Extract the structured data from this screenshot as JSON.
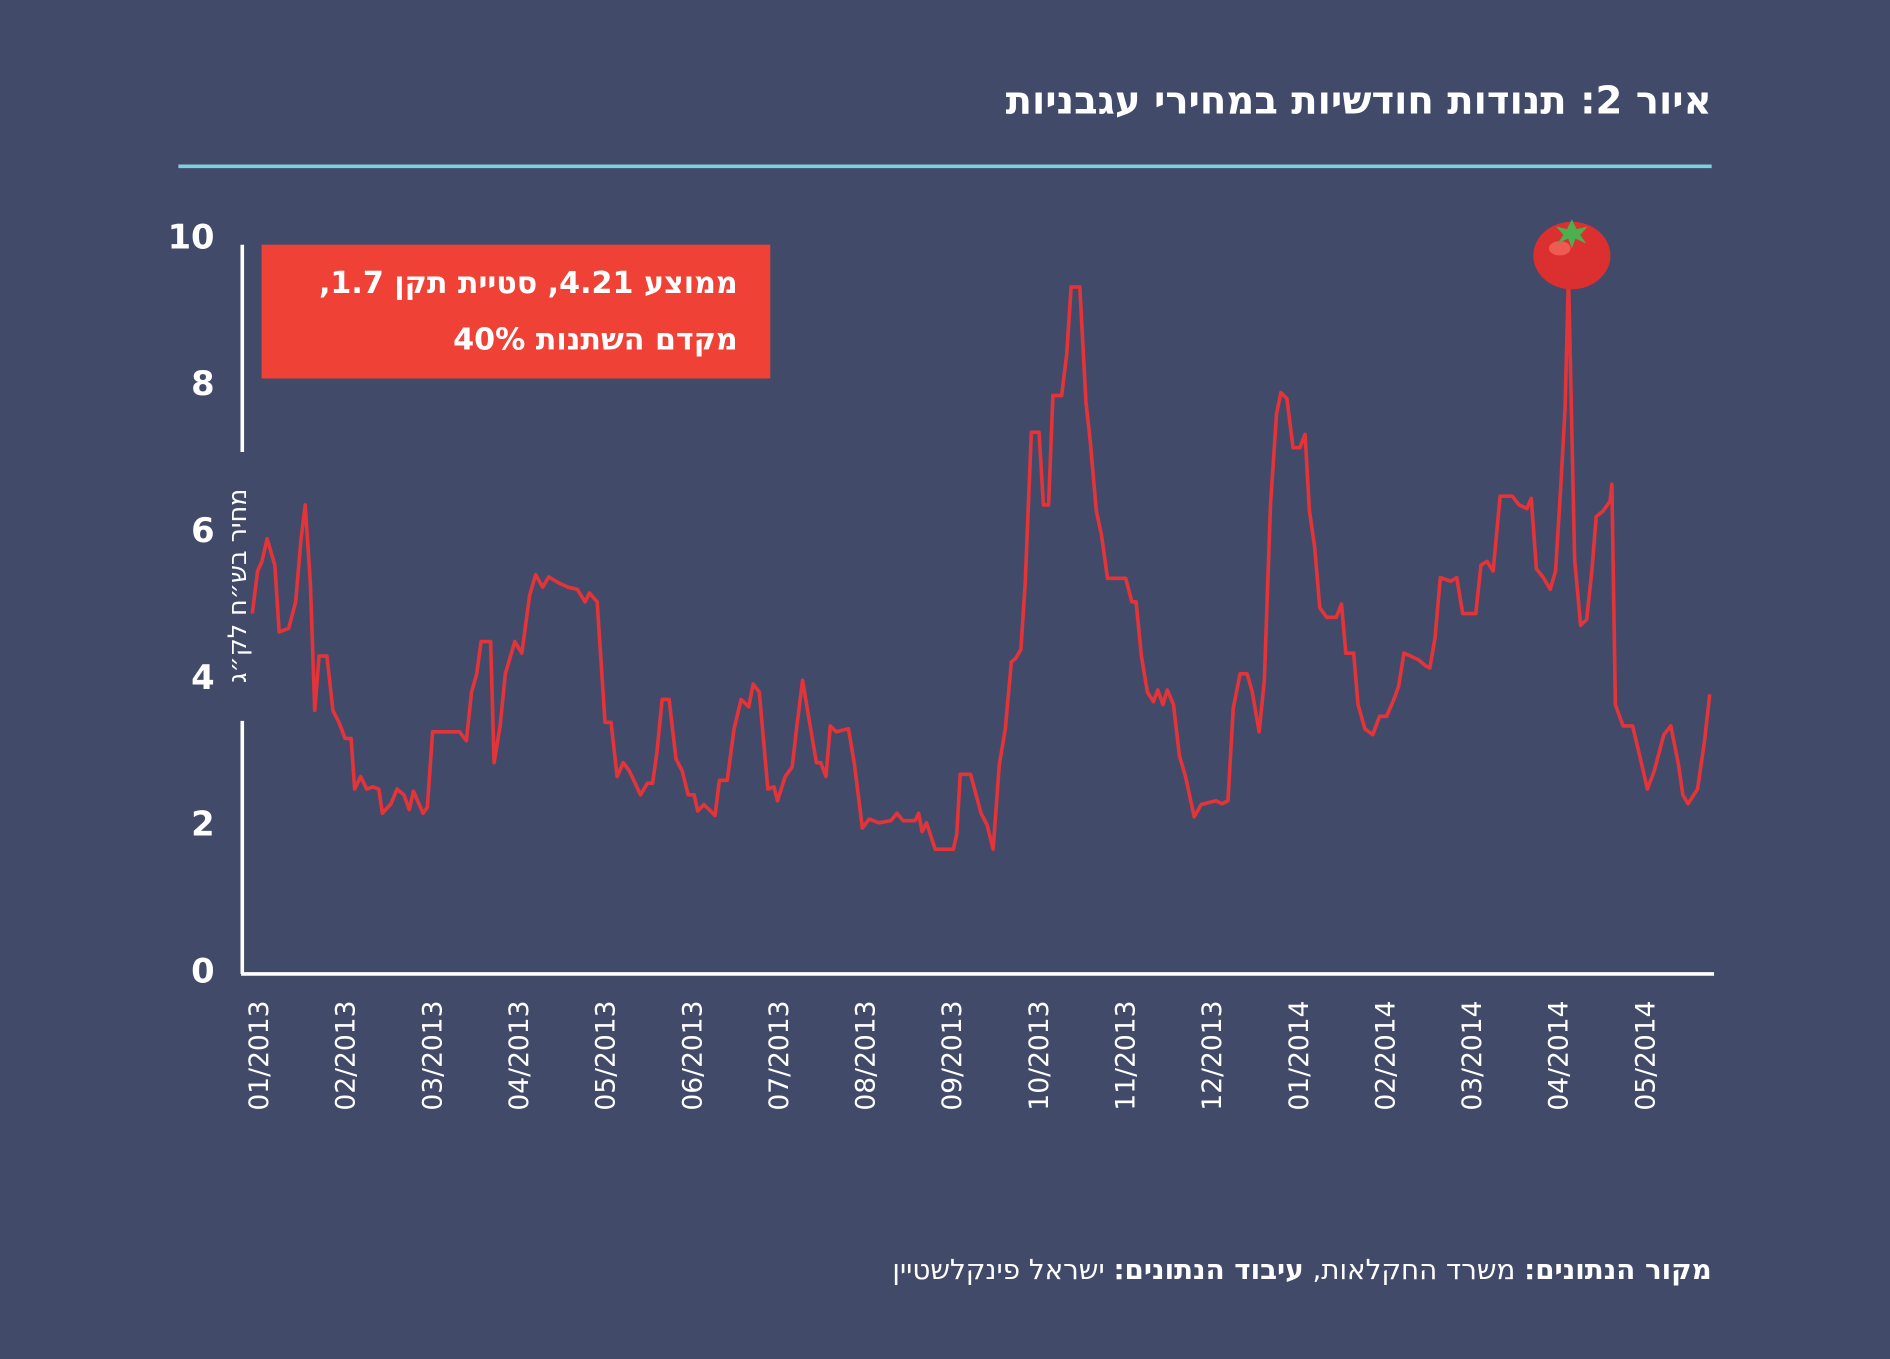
{
  "title": "איור 2: תנודות חודשיות במחירי עגבניות",
  "chart_data": {
    "type": "line",
    "y_label": "מחיר בש״ח לק״ג",
    "annotation": [
      "ממוצע 4.21, סטיית תקן 1.7,",
      "מקדם השתנות 40%"
    ],
    "xlim": [
      -0.2,
      16.8
    ],
    "xticks": [
      {
        "value": 0,
        "label": "01/2013"
      },
      {
        "value": 1,
        "label": "02/2013"
      },
      {
        "value": 2,
        "label": "03/2013"
      },
      {
        "value": 3,
        "label": "04/2013"
      },
      {
        "value": 4,
        "label": "05/2013"
      },
      {
        "value": 5,
        "label": "06/2013"
      },
      {
        "value": 6,
        "label": "07/2013"
      },
      {
        "value": 7,
        "label": "08/2013"
      },
      {
        "value": 8,
        "label": "09/2013"
      },
      {
        "value": 9,
        "label": "10/2013"
      },
      {
        "value": 10,
        "label": "11/2013"
      },
      {
        "value": 11,
        "label": "12/2013"
      },
      {
        "value": 12,
        "label": "01/2014"
      },
      {
        "value": 13,
        "label": "02/2014"
      },
      {
        "value": 14,
        "label": "03/2014"
      },
      {
        "value": 15,
        "label": "04/2014"
      },
      {
        "value": 16,
        "label": "05/2014"
      }
    ],
    "ylim": [
      0,
      10
    ],
    "yticks": [
      0,
      2,
      4,
      6,
      8,
      10
    ],
    "x": [
      -0.07,
      -0.01,
      0.04,
      0.1,
      0.19,
      0.24,
      0.35,
      0.43,
      0.49,
      0.54,
      0.6,
      0.65,
      0.7,
      0.79,
      0.86,
      0.93,
      1.0,
      1.07,
      1.11,
      1.18,
      1.25,
      1.32,
      1.39,
      1.43,
      1.53,
      1.6,
      1.68,
      1.74,
      1.79,
      1.9,
      1.95,
      2.01,
      2.32,
      2.4,
      2.46,
      2.52,
      2.57,
      2.68,
      2.72,
      2.79,
      2.85,
      2.96,
      3.04,
      3.13,
      3.2,
      3.28,
      3.35,
      3.48,
      3.57,
      3.68,
      3.77,
      3.82,
      3.91,
      4.0,
      4.07,
      4.14,
      4.21,
      4.28,
      4.41,
      4.49,
      4.55,
      4.6,
      4.66,
      4.74,
      4.82,
      4.89,
      4.96,
      5.03,
      5.07,
      5.14,
      5.27,
      5.32,
      5.41,
      5.49,
      5.57,
      5.66,
      5.71,
      5.78,
      5.88,
      5.95,
      5.99,
      6.08,
      6.16,
      6.21,
      6.28,
      6.35,
      6.44,
      6.49,
      6.55,
      6.6,
      6.67,
      6.81,
      6.88,
      6.97,
      7.05,
      7.16,
      7.3,
      7.37,
      7.44,
      7.58,
      7.62,
      7.66,
      7.71,
      7.81,
      8.02,
      8.06,
      8.1,
      8.22,
      8.34,
      8.41,
      8.48,
      8.55,
      8.62,
      8.69,
      8.74,
      8.8,
      8.85,
      8.92,
      9.01,
      9.06,
      9.12,
      9.17,
      9.27,
      9.33,
      9.38,
      9.48,
      9.55,
      9.6,
      9.67,
      9.73,
      9.8,
      10.01,
      10.08,
      10.13,
      10.19,
      10.26,
      10.33,
      10.38,
      10.44,
      10.49,
      10.56,
      10.63,
      10.7,
      10.8,
      10.88,
      11.05,
      11.12,
      11.19,
      11.25,
      11.33,
      11.41,
      11.47,
      11.55,
      11.61,
      11.68,
      11.75,
      11.8,
      11.87,
      11.94,
      12.02,
      12.08,
      12.13,
      12.19,
      12.25,
      12.33,
      12.44,
      12.5,
      12.55,
      12.64,
      12.69,
      12.77,
      12.86,
      12.94,
      13.02,
      13.11,
      13.16,
      13.22,
      13.3,
      13.39,
      13.47,
      13.52,
      13.58,
      13.64,
      13.76,
      13.83,
      13.9,
      14.05,
      14.11,
      14.18,
      14.25,
      14.33,
      14.47,
      14.55,
      14.64,
      14.69,
      14.75,
      14.83,
      14.91,
      14.97,
      15.03,
      15.08,
      15.12,
      15.19,
      15.26,
      15.33,
      15.39,
      15.44,
      15.52,
      15.6,
      15.62,
      15.66,
      15.75,
      15.86,
      15.94,
      16.03,
      16.11,
      16.22,
      16.3,
      16.39,
      16.44,
      16.5,
      16.61,
      16.69,
      16.75
    ],
    "series": [
      {
        "color": "#e3343a",
        "values": [
          4.86,
          5.44,
          5.57,
          5.88,
          5.52,
          4.61,
          4.66,
          5.02,
          5.85,
          6.34,
          5.27,
          3.54,
          4.28,
          4.28,
          3.54,
          3.38,
          3.16,
          3.16,
          2.47,
          2.64,
          2.47,
          2.5,
          2.47,
          2.14,
          2.27,
          2.47,
          2.39,
          2.19,
          2.44,
          2.14,
          2.22,
          3.25,
          3.25,
          3.13,
          3.79,
          4.04,
          4.48,
          4.48,
          2.83,
          3.33,
          4.04,
          4.48,
          4.32,
          5.11,
          5.39,
          5.22,
          5.36,
          5.27,
          5.22,
          5.19,
          5.02,
          5.14,
          5.02,
          3.38,
          3.38,
          2.64,
          2.83,
          2.72,
          2.39,
          2.55,
          2.55,
          2.97,
          3.69,
          3.69,
          2.88,
          2.72,
          2.39,
          2.39,
          2.17,
          2.26,
          2.11,
          2.59,
          2.59,
          3.29,
          3.69,
          3.59,
          3.9,
          3.79,
          2.47,
          2.5,
          2.31,
          2.64,
          2.77,
          3.29,
          3.95,
          3.46,
          2.83,
          2.83,
          2.64,
          3.33,
          3.25,
          3.29,
          2.8,
          1.94,
          2.06,
          2.01,
          2.04,
          2.14,
          2.04,
          2.04,
          2.14,
          1.89,
          2.01,
          1.65,
          1.65,
          1.85,
          2.67,
          2.67,
          2.14,
          1.98,
          1.65,
          2.8,
          3.29,
          4.2,
          4.25,
          4.37,
          5.27,
          7.33,
          7.33,
          6.34,
          6.34,
          7.83,
          7.83,
          8.4,
          9.31,
          9.31,
          7.74,
          7.22,
          6.26,
          5.93,
          5.34,
          5.34,
          5.02,
          5.02,
          4.28,
          3.79,
          3.66,
          3.82,
          3.62,
          3.82,
          3.62,
          2.92,
          2.64,
          2.09,
          2.26,
          2.31,
          2.27,
          2.31,
          3.57,
          4.04,
          4.04,
          3.79,
          3.25,
          3.95,
          6.34,
          7.58,
          7.87,
          7.79,
          7.12,
          7.12,
          7.3,
          6.26,
          5.77,
          4.94,
          4.81,
          4.81,
          4.99,
          4.32,
          4.32,
          3.62,
          3.29,
          3.21,
          3.46,
          3.46,
          3.71,
          3.87,
          4.32,
          4.28,
          4.23,
          4.15,
          4.12,
          4.53,
          5.35,
          5.3,
          5.35,
          4.86,
          4.86,
          5.52,
          5.57,
          5.44,
          6.46,
          6.46,
          6.34,
          6.29,
          6.43,
          5.47,
          5.35,
          5.19,
          5.44,
          6.59,
          7.66,
          9.47,
          5.6,
          4.7,
          4.78,
          5.44,
          6.18,
          6.26,
          6.39,
          6.62,
          3.62,
          3.33,
          3.33,
          2.93,
          2.47,
          2.72,
          3.21,
          3.33,
          2.8,
          2.39,
          2.27,
          2.47,
          3.13,
          3.76
        ]
      }
    ]
  },
  "source": {
    "label1": "מקור הנתונים:",
    "text1": "משרד החקלאות,",
    "label2": "עיבוד הנתונים:",
    "text2": "ישראל פינקלשטיין"
  }
}
